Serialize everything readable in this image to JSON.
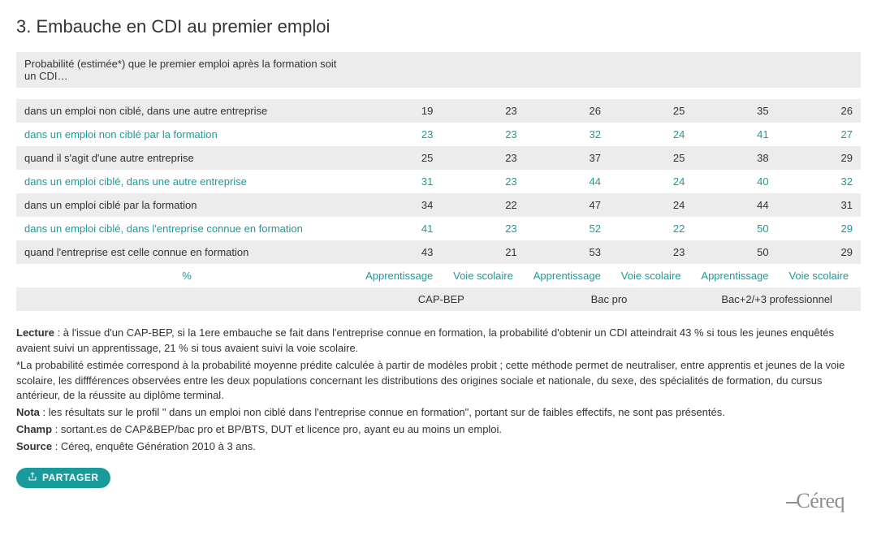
{
  "title": "3. Embauche en CDI au premier emploi",
  "header_row": "Probabilité (estimée*) que le premier emploi après la formation soit un CDI…",
  "percent_label": "%",
  "sub_headers": [
    "Apprentissage",
    "Voie scolaire",
    "Apprentissage",
    "Voie scolaire",
    "Apprentissage",
    "Voie scolaire"
  ],
  "group_headers": [
    "CAP-BEP",
    "Bac pro",
    "Bac+2/+3 professionnel"
  ],
  "rows": [
    {
      "label": "dans un emploi non ciblé, dans une autre entreprise",
      "teal": false,
      "vals": [
        "19",
        "23",
        "26",
        "25",
        "35",
        "26"
      ]
    },
    {
      "label": "dans un emploi non ciblé par la formation",
      "teal": true,
      "vals": [
        "23",
        "23",
        "32",
        "24",
        "41",
        "27"
      ]
    },
    {
      "label": "quand il s'agit d'une autre entreprise",
      "teal": false,
      "vals": [
        "25",
        "23",
        "37",
        "25",
        "38",
        "29"
      ]
    },
    {
      "label": "dans un emploi ciblé, dans une autre entreprise",
      "teal": true,
      "vals": [
        "31",
        "23",
        "44",
        "24",
        "40",
        "32"
      ]
    },
    {
      "label": "dans un emploi ciblé par la formation",
      "teal": false,
      "vals": [
        "34",
        "22",
        "47",
        "24",
        "44",
        "31"
      ]
    },
    {
      "label": "dans un emploi ciblé, dans l'entreprise connue en formation",
      "teal": true,
      "vals": [
        "41",
        "23",
        "52",
        "22",
        "50",
        "29"
      ]
    },
    {
      "label": "quand l'entreprise est celle connue en formation",
      "teal": false,
      "vals": [
        "43",
        "21",
        "53",
        "23",
        "50",
        "29"
      ]
    }
  ],
  "notes": {
    "lecture_label": "Lecture",
    "lecture_text": " : à l'issue d'un CAP-BEP, si la 1ere embauche se fait dans l'entreprise connue en formation, la probabilité d'obtenir un CDI atteindrait 43 % si tous les jeunes enquêtés avaient suivi un apprentissage, 21 % si tous avaient suivi la voie scolaire.",
    "star_text": "*La probabilité estimée correspond à la probabilité moyenne prédite calculée à partir de modèles probit ; cette méthode permet de neutraliser, entre apprentis et jeunes de la voie scolaire, les diffférences observées entre les deux populations concernant les distributions des origines sociale et nationale, du sexe, des spécialités de formation, du cursus antérieur, de la réussite au diplôme terminal.",
    "nota_label": "Nota",
    "nota_text": " : les résultats sur le profil \" dans un emploi non ciblé dans l'entreprise connue en formation\", portant sur de faibles effectifs, ne sont pas présentés.",
    "champ_label": "Champ",
    "champ_text": " : sortant.es de CAP&BEP/bac pro et BP/BTS, DUT et licence pro, ayant eu au moins un emploi.",
    "source_label": "Source",
    "source_text": " : Céreq, enquête Génération 2010 à 3 ans."
  },
  "share_label": "PARTAGER",
  "logo_text": "Céreq",
  "colors": {
    "teal": "#1a9b9b",
    "band": "#ececec",
    "text": "#333333",
    "logo": "#8a8f8f"
  }
}
